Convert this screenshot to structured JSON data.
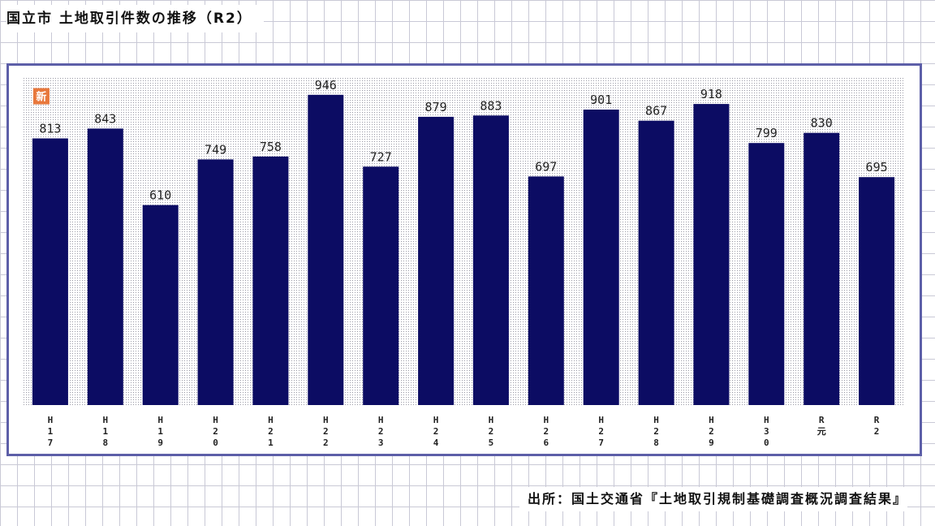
{
  "title": "国立市 土地取引件数の推移（R2）",
  "source": "出所：国土交通省『土地取引規制基礎調査概況調査結果』",
  "badge": {
    "text": "新",
    "color": "#e8783c"
  },
  "colors": {
    "bar": "#0c0c63",
    "frame": "#5d5fa8",
    "plot_dots": "#9a9aa6"
  },
  "chart_data": {
    "type": "bar",
    "title": "国立市 土地取引件数の推移（R2）",
    "categories": [
      "H17",
      "H18",
      "H19",
      "H20",
      "H21",
      "H22",
      "H23",
      "H24",
      "H25",
      "H26",
      "H27",
      "H28",
      "H29",
      "H30",
      "R元",
      "R2"
    ],
    "tick_labels": [
      [
        "H",
        "1",
        "7"
      ],
      [
        "H",
        "1",
        "8"
      ],
      [
        "H",
        "1",
        "9"
      ],
      [
        "H",
        "2",
        "0"
      ],
      [
        "H",
        "2",
        "1"
      ],
      [
        "H",
        "2",
        "2"
      ],
      [
        "H",
        "2",
        "3"
      ],
      [
        "H",
        "2",
        "4"
      ],
      [
        "H",
        "2",
        "5"
      ],
      [
        "H",
        "2",
        "6"
      ],
      [
        "H",
        "2",
        "7"
      ],
      [
        "H",
        "2",
        "8"
      ],
      [
        "H",
        "2",
        "9"
      ],
      [
        "H",
        "3",
        "0"
      ],
      [
        "R",
        "元"
      ],
      [
        "R",
        "2"
      ]
    ],
    "values": [
      813,
      843,
      610,
      749,
      758,
      946,
      727,
      879,
      883,
      697,
      901,
      867,
      918,
      799,
      830,
      695
    ],
    "value_labels": [
      "813",
      "843",
      "610",
      "749",
      "758",
      "946",
      "727",
      "879",
      "883",
      "697",
      "901",
      "867",
      "918",
      "799",
      "830",
      "695"
    ],
    "ylim": [
      0,
      1000
    ],
    "grid": false,
    "legend": "none",
    "badge_category": "H17"
  }
}
